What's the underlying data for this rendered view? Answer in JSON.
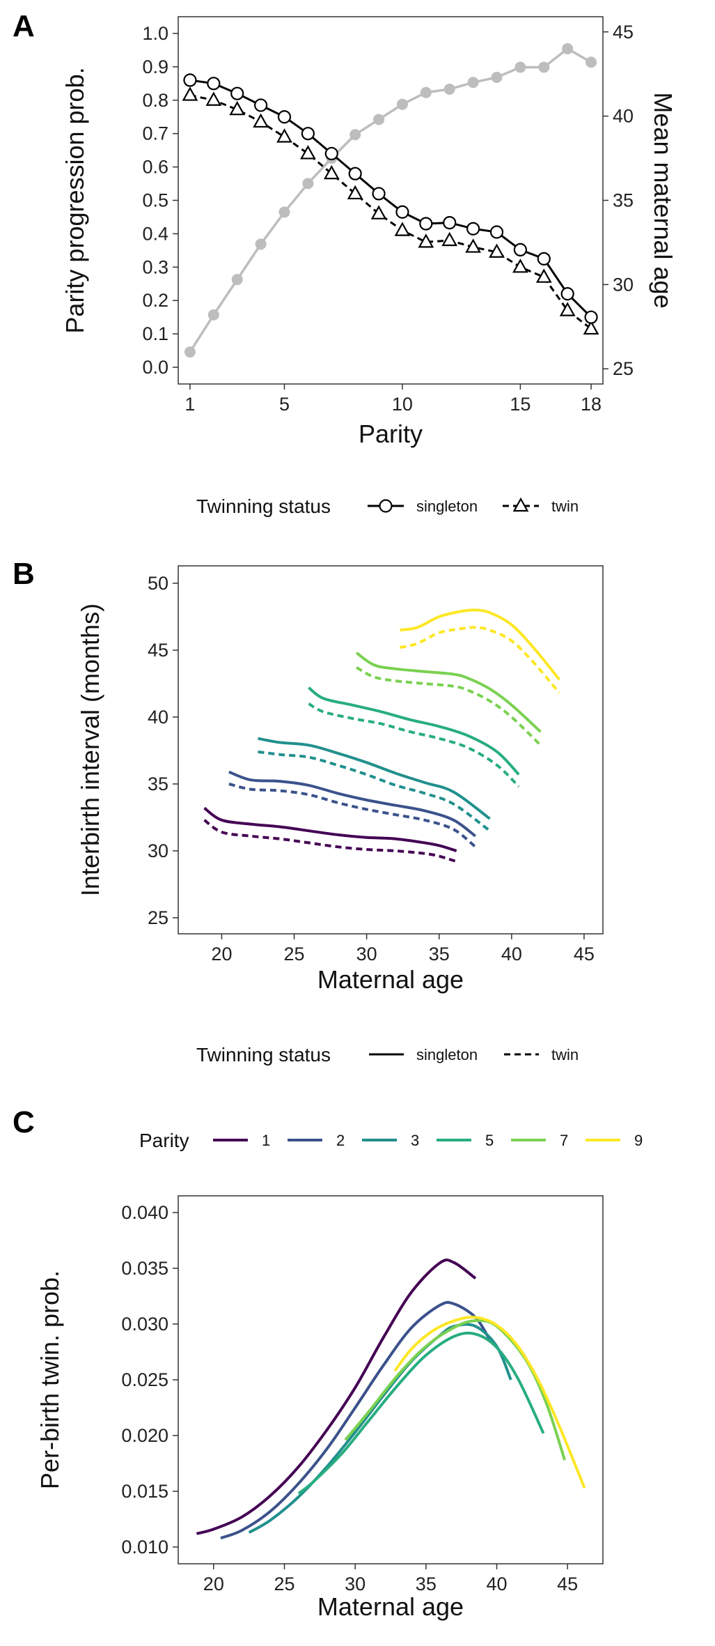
{
  "chart_data": [
    {
      "panel": "A",
      "type": "line",
      "xlabel": "Parity",
      "ylabel": "Parity progression prob.",
      "y2label": "Mean maternal age",
      "x_ticks": [
        1,
        5,
        10,
        15,
        18
      ],
      "y_ticks": [
        "0.0",
        "0.1",
        "0.2",
        "0.3",
        "0.4",
        "0.5",
        "0.6",
        "0.7",
        "0.8",
        "0.9",
        "1.0"
      ],
      "y2_ticks": [
        "25",
        "30",
        "35",
        "40",
        "45"
      ],
      "xlim": [
        0.5,
        18.5
      ],
      "ylim": [
        -0.05,
        1.05
      ],
      "y2lim": [
        24.1,
        45.9
      ],
      "x": [
        1,
        2,
        3,
        4,
        5,
        6,
        7,
        8,
        9,
        10,
        11,
        12,
        13,
        14,
        15,
        16,
        17,
        18
      ],
      "series": [
        {
          "name": "singleton",
          "axis": "left",
          "values": [
            0.86,
            0.85,
            0.82,
            0.785,
            0.75,
            0.7,
            0.64,
            0.58,
            0.52,
            0.465,
            0.43,
            0.433,
            0.415,
            0.405,
            0.352,
            0.325,
            0.22,
            0.15
          ]
        },
        {
          "name": "twin",
          "axis": "left",
          "values": [
            0.815,
            0.8,
            0.772,
            0.735,
            0.69,
            0.64,
            0.58,
            0.52,
            0.46,
            0.41,
            0.375,
            0.38,
            0.36,
            0.345,
            0.3,
            0.27,
            0.17,
            0.115
          ]
        },
        {
          "axis": "right",
          "color": "#bdbdbd",
          "values": [
            26.0,
            28.2,
            30.3,
            32.4,
            34.3,
            36.0,
            37.5,
            38.9,
            39.8,
            40.7,
            41.4,
            41.6,
            42.0,
            42.3,
            42.9,
            42.9,
            44.0,
            43.2
          ]
        }
      ],
      "legend": {
        "title": "Twinning status",
        "entries": [
          {
            "label": "singleton",
            "line": "solid",
            "marker": "circle"
          },
          {
            "label": "twin",
            "line": "dashed",
            "marker": "triangle"
          }
        ]
      }
    },
    {
      "panel": "B",
      "type": "line",
      "xlabel": "Maternal age",
      "ylabel": "Interbirth interval (months)",
      "x_ticks": [
        20,
        25,
        30,
        35,
        40,
        45
      ],
      "y_ticks": [
        25,
        30,
        35,
        40,
        45,
        50
      ],
      "xlim": [
        17.0,
        46.3
      ],
      "ylim": [
        23.8,
        51.3
      ],
      "series": [
        {
          "name": "1",
          "status": "singleton",
          "color": "#440154",
          "x": [
            18.8,
            20,
            22,
            24,
            26,
            28,
            30,
            32,
            34,
            35,
            36.2
          ],
          "y": [
            33.2,
            32.3,
            32.0,
            31.8,
            31.5,
            31.2,
            31.0,
            30.9,
            30.6,
            30.4,
            30.0
          ]
        },
        {
          "name": "1",
          "status": "twin",
          "color": "#440154",
          "x": [
            18.8,
            20,
            22,
            24,
            26,
            28,
            30,
            32,
            34,
            35,
            36.2
          ],
          "y": [
            32.3,
            31.4,
            31.1,
            30.9,
            30.6,
            30.3,
            30.1,
            30.0,
            29.8,
            29.6,
            29.2
          ]
        },
        {
          "name": "2",
          "status": "singleton",
          "color": "#3b528b",
          "x": [
            20.5,
            22,
            24,
            26,
            28,
            30,
            32,
            34,
            36,
            37.5
          ],
          "y": [
            35.9,
            35.3,
            35.2,
            34.9,
            34.3,
            33.8,
            33.4,
            33.0,
            32.3,
            31.1
          ]
        },
        {
          "name": "2",
          "status": "twin",
          "color": "#3b528b",
          "x": [
            20.5,
            22,
            24,
            26,
            28,
            30,
            32,
            34,
            36,
            37.5
          ],
          "y": [
            35.0,
            34.6,
            34.5,
            34.2,
            33.6,
            33.1,
            32.7,
            32.3,
            31.6,
            30.3
          ]
        },
        {
          "name": "3",
          "status": "singleton",
          "color": "#21908d",
          "x": [
            22.5,
            24,
            26,
            28,
            30,
            32,
            34,
            36,
            38.5
          ],
          "y": [
            38.4,
            38.1,
            37.9,
            37.3,
            36.6,
            35.8,
            35.1,
            34.4,
            32.4
          ]
        },
        {
          "name": "3",
          "status": "twin",
          "color": "#21908d",
          "x": [
            22.5,
            24,
            26,
            28,
            30,
            32,
            34,
            36,
            38.5
          ],
          "y": [
            37.4,
            37.2,
            37.0,
            36.4,
            35.7,
            34.9,
            34.3,
            33.5,
            31.5
          ]
        },
        {
          "name": "5",
          "status": "singleton",
          "color": "#27ad81",
          "x": [
            26,
            27,
            29,
            31,
            33,
            35,
            37,
            39,
            40.5
          ],
          "y": [
            42.2,
            41.4,
            40.9,
            40.4,
            39.8,
            39.3,
            38.6,
            37.4,
            35.7
          ]
        },
        {
          "name": "5",
          "status": "twin",
          "color": "#27ad81",
          "x": [
            26,
            27,
            29,
            31,
            33,
            35,
            37,
            39,
            40.5
          ],
          "y": [
            41.0,
            40.4,
            39.9,
            39.5,
            38.9,
            38.4,
            37.7,
            36.4,
            34.8
          ]
        },
        {
          "name": "7",
          "status": "singleton",
          "color": "#7ad151",
          "x": [
            29.3,
            30.5,
            32,
            34,
            36,
            37,
            38.5,
            40,
            42
          ],
          "y": [
            44.8,
            43.9,
            43.6,
            43.4,
            43.2,
            42.9,
            42.1,
            40.9,
            38.9
          ]
        },
        {
          "name": "7",
          "status": "twin",
          "color": "#7ad151",
          "x": [
            29.3,
            30.5,
            32,
            34,
            36,
            37,
            38.5,
            40,
            42
          ],
          "y": [
            43.7,
            43.0,
            42.7,
            42.5,
            42.3,
            42.0,
            41.2,
            40.0,
            37.9
          ]
        },
        {
          "name": "9",
          "status": "singleton",
          "color": "#fde725",
          "x": [
            32.3,
            33.5,
            35,
            36.5,
            37.5,
            38.5,
            40,
            41.5,
            43.3
          ],
          "y": [
            46.5,
            46.7,
            47.5,
            47.9,
            48.0,
            47.8,
            46.9,
            45.2,
            42.8
          ]
        },
        {
          "name": "9",
          "status": "twin",
          "color": "#fde725",
          "x": [
            32.3,
            33.5,
            35,
            36.5,
            37.5,
            38.5,
            40,
            41.5,
            43.3
          ],
          "y": [
            45.2,
            45.5,
            46.3,
            46.6,
            46.7,
            46.5,
            45.7,
            44.1,
            41.8
          ]
        }
      ],
      "legend": {
        "title": "Twinning status",
        "entries": [
          {
            "label": "singleton",
            "line": "solid"
          },
          {
            "label": "twin",
            "line": "dashed"
          }
        ]
      }
    },
    {
      "panel": "C",
      "type": "line",
      "xlabel": "Maternal age",
      "ylabel": "Per-birth twin. prob.",
      "x_ticks": [
        20,
        25,
        30,
        35,
        40,
        45
      ],
      "y_ticks": [
        "0.010",
        "0.015",
        "0.020",
        "0.025",
        "0.030",
        "0.035",
        "0.040"
      ],
      "xlim": [
        17.5,
        47.5
      ],
      "ylim": [
        0.0085,
        0.0415
      ],
      "series": [
        {
          "name": "1",
          "color": "#440154",
          "x": [
            18.8,
            20,
            22,
            24,
            26,
            28,
            30,
            32,
            34,
            36,
            37,
            38.5
          ],
          "y": [
            0.0112,
            0.0116,
            0.0127,
            0.0146,
            0.0172,
            0.0205,
            0.0243,
            0.0288,
            0.0329,
            0.0355,
            0.0355,
            0.0341
          ]
        },
        {
          "name": "2",
          "color": "#3b528b",
          "x": [
            20.5,
            22,
            24,
            26,
            28,
            30,
            32,
            34,
            36,
            37,
            38.5,
            39.5
          ],
          "y": [
            0.0108,
            0.0115,
            0.0132,
            0.0157,
            0.0188,
            0.0225,
            0.0263,
            0.0297,
            0.0317,
            0.0318,
            0.0306,
            0.0286
          ]
        },
        {
          "name": "3",
          "color": "#21908d",
          "x": [
            22.5,
            24,
            26,
            28,
            30,
            32,
            34,
            36,
            37,
            38.5,
            40,
            41
          ],
          "y": [
            0.0113,
            0.0124,
            0.0145,
            0.0172,
            0.0203,
            0.0236,
            0.0267,
            0.029,
            0.0298,
            0.0298,
            0.028,
            0.025
          ]
        },
        {
          "name": "5",
          "color": "#27ad81",
          "x": [
            26,
            27,
            29,
            31,
            33,
            35,
            37,
            38.5,
            40,
            41.5,
            43.3
          ],
          "y": [
            0.0148,
            0.0158,
            0.0183,
            0.0214,
            0.0245,
            0.0272,
            0.0289,
            0.0291,
            0.0279,
            0.0251,
            0.0202
          ]
        },
        {
          "name": "7",
          "color": "#7ad151",
          "x": [
            29.3,
            31,
            33,
            35,
            37,
            38.5,
            40,
            42,
            43.5,
            44.8
          ],
          "y": [
            0.0196,
            0.0222,
            0.0254,
            0.028,
            0.0297,
            0.0303,
            0.0298,
            0.0269,
            0.0229,
            0.0178
          ]
        },
        {
          "name": "9",
          "color": "#fde725",
          "x": [
            32.8,
            34,
            35.5,
            37,
            38.5,
            40,
            41.5,
            43,
            44.5,
            46.2
          ],
          "y": [
            0.0258,
            0.0278,
            0.0294,
            0.0303,
            0.0306,
            0.0299,
            0.028,
            0.0248,
            0.0206,
            0.0153
          ]
        }
      ],
      "legend": {
        "title": "Parity",
        "entries": [
          {
            "label": "1",
            "color": "#440154"
          },
          {
            "label": "2",
            "color": "#3b528b"
          },
          {
            "label": "3",
            "color": "#21908d"
          },
          {
            "label": "5",
            "color": "#27ad81"
          },
          {
            "label": "7",
            "color": "#7ad151"
          },
          {
            "label": "9",
            "color": "#fde725"
          }
        ]
      }
    }
  ]
}
